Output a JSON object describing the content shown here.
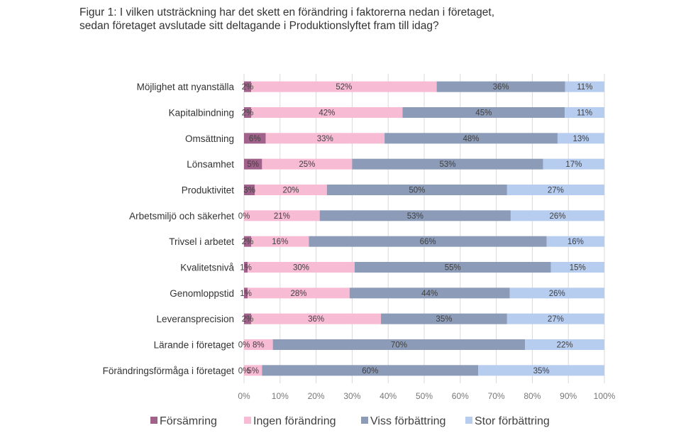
{
  "chart_data": {
    "type": "bar",
    "orientation": "horizontal",
    "stacked": "percent",
    "title": "Figur 1: I vilken utsträckning har det skett en förändring i faktorerna nedan i företaget, sedan företaget avslutade sitt deltagande i Produktionslyftet fram till idag?",
    "categories": [
      "Möjlighet att nyanställa",
      "Kapitalbindning",
      "Omsättning",
      "Lönsamhet",
      "Produktivitet",
      "Arbetsmiljö och säkerhet",
      "Trivsel i arbetet",
      "Kvalitetsnivå",
      "Genomloppstid",
      "Leveransprecision",
      "Lärande i företaget",
      "Förändringsförmåga i företaget"
    ],
    "series": [
      {
        "name": "Försämring",
        "color": "#a0628a",
        "values": [
          2,
          2,
          6,
          5,
          3,
          0,
          2,
          1,
          1,
          2,
          0,
          0
        ]
      },
      {
        "name": "Ingen förändring",
        "color": "#f7bcd3",
        "values": [
          52,
          42,
          33,
          25,
          20,
          21,
          16,
          30,
          28,
          36,
          8,
          5
        ]
      },
      {
        "name": "Viss förbättring",
        "color": "#8c9bb7",
        "values": [
          36,
          45,
          48,
          53,
          50,
          53,
          66,
          55,
          44,
          35,
          70,
          60
        ]
      },
      {
        "name": "Stor förbättring",
        "color": "#b7cdf0",
        "values": [
          11,
          11,
          13,
          17,
          27,
          26,
          16,
          15,
          26,
          27,
          22,
          35
        ]
      }
    ],
    "xlim": [
      0,
      100
    ],
    "xticks": [
      "0%",
      "10%",
      "20%",
      "30%",
      "40%",
      "50%",
      "60%",
      "70%",
      "80%",
      "90%",
      "100%"
    ],
    "grid": true,
    "legend_position": "bottom",
    "value_suffix": "%"
  }
}
